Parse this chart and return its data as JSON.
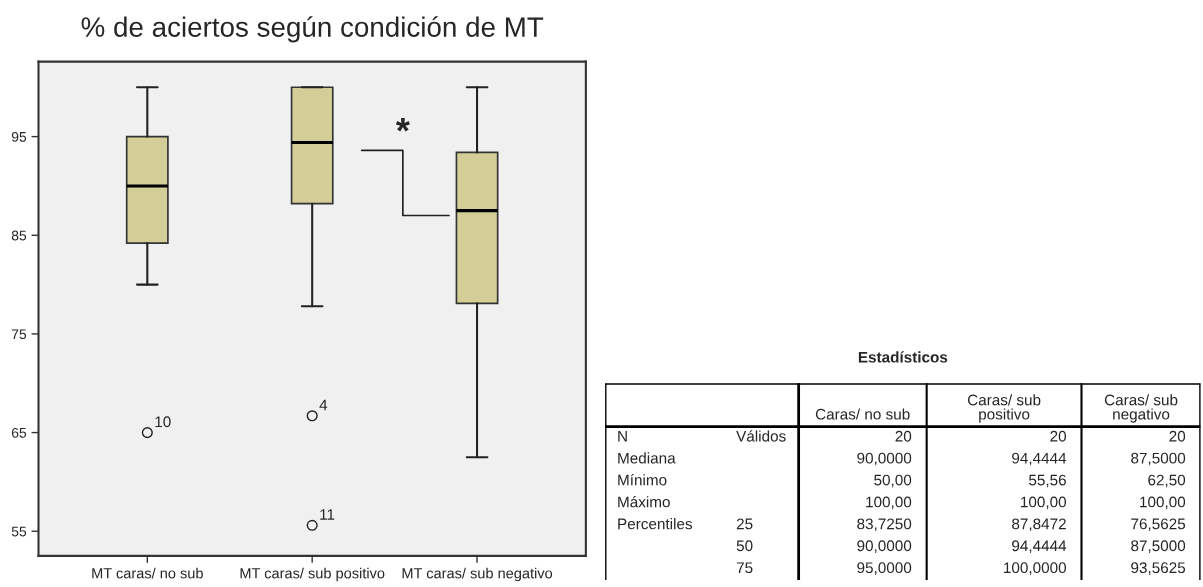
{
  "chart_data": [
    {
      "type": "box",
      "title": "% de aciertos según condición de MT",
      "categories": [
        "MT caras/ no sub",
        "MT caras/ sub positivo",
        "MT caras/ sub negativo"
      ],
      "boxes": [
        {
          "low": 80,
          "q1": 84.2,
          "median": 90,
          "q3": 95,
          "high": 100,
          "outliers": [
            65
          ]
        },
        {
          "low": 77.8,
          "q1": 88.2,
          "median": 94.4,
          "q3": 100,
          "high": 100,
          "outliers": [
            66.7,
            55.6
          ]
        },
        {
          "low": 62.5,
          "q1": 78.1,
          "median": 87.5,
          "q3": 93.4,
          "high": 100
        }
      ],
      "color": "#d3cd98",
      "ylim": [
        52.5,
        102.6
      ],
      "yticks": [
        55,
        65,
        75,
        85,
        95
      ],
      "grid": false,
      "legend": false,
      "annotations": [
        "10",
        "4",
        "11",
        "*"
      ]
    },
    {
      "type": "other",
      "title": "Estadísticos",
      "categories": [
        null,
        null,
        "Caras/ no sub",
        "Caras/ sub\npositivo",
        "Caras/ sub\nnegativo"
      ],
      "annotations": [
        "N",
        "Válidos",
        "20",
        "20",
        "20",
        "Mediana",
        null,
        "90,0000",
        "94,4444",
        "87,5000",
        "Mínimo",
        null,
        "50,00",
        "55,56",
        "62,50",
        "Máximo",
        null,
        "100,00",
        "100,00",
        "100,00",
        "Percentiles",
        "25",
        "83,7250",
        "87,8472",
        "76,5625",
        null,
        "50",
        "90,0000",
        "94,4444",
        "87,5000",
        null,
        "75",
        "95,0000",
        "100,0000",
        "93,5625"
      ]
    }
  ]
}
